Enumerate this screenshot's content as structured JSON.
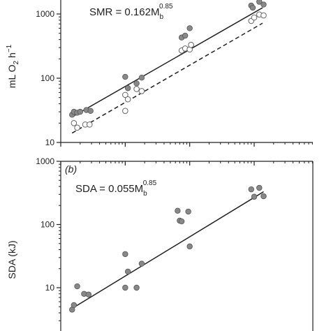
{
  "chart_data": [
    {
      "type": "scatter",
      "panel": "a",
      "equation": {
        "prefix": "SMR = 0.162M",
        "sub": "b",
        "sup": "0.85"
      },
      "ylabel_parts": {
        "a": "mL O",
        "sub": "2",
        "b": " h",
        "sup": "−1"
      },
      "yscale": "log",
      "ylim": [
        10,
        1500
      ],
      "xscale": "log",
      "xlim": [
        1,
        2000
      ],
      "yticks": [
        {
          "value": 10,
          "label": "10"
        },
        {
          "value": 100,
          "label": "100"
        },
        {
          "value": 1000,
          "label": "1000"
        }
      ],
      "series": [
        {
          "marker": "filled-gray",
          "fit": {
            "style": "solid",
            "x": [
              1.5,
              1350
            ],
            "y": [
              25,
              1250
            ]
          },
          "points": [
            {
              "x": 1.5,
              "y": 27
            },
            {
              "x": 1.6,
              "y": 30
            },
            {
              "x": 1.8,
              "y": 29
            },
            {
              "x": 2.0,
              "y": 30
            },
            {
              "x": 2.5,
              "y": 32
            },
            {
              "x": 2.9,
              "y": 31
            },
            {
              "x": 10,
              "y": 105
            },
            {
              "x": 11,
              "y": 70
            },
            {
              "x": 15,
              "y": 83
            },
            {
              "x": 18,
              "y": 102
            },
            {
              "x": 75,
              "y": 430
            },
            {
              "x": 85,
              "y": 460
            },
            {
              "x": 100,
              "y": 600
            },
            {
              "x": 105,
              "y": 330
            },
            {
              "x": 900,
              "y": 1350
            },
            {
              "x": 950,
              "y": 1250
            },
            {
              "x": 1200,
              "y": 1550
            },
            {
              "x": 1400,
              "y": 1400
            }
          ]
        },
        {
          "marker": "open",
          "fit": {
            "style": "dashed",
            "x": [
              1.5,
              1350
            ],
            "y": [
              14,
              720
            ]
          },
          "points": [
            {
              "x": 1.6,
              "y": 20
            },
            {
              "x": 1.8,
              "y": 17
            },
            {
              "x": 2.4,
              "y": 19
            },
            {
              "x": 2.8,
              "y": 19
            },
            {
              "x": 10,
              "y": 55
            },
            {
              "x": 10,
              "y": 31
            },
            {
              "x": 11,
              "y": 47
            },
            {
              "x": 15,
              "y": 68
            },
            {
              "x": 18,
              "y": 63
            },
            {
              "x": 75,
              "y": 270
            },
            {
              "x": 85,
              "y": 290
            },
            {
              "x": 100,
              "y": 280
            },
            {
              "x": 105,
              "y": 330
            },
            {
              "x": 900,
              "y": 780
            },
            {
              "x": 1000,
              "y": 880
            },
            {
              "x": 1200,
              "y": 980
            },
            {
              "x": 1400,
              "y": 950
            }
          ]
        }
      ]
    },
    {
      "type": "scatter",
      "panel": "b",
      "panel_tag": "(b)",
      "equation": {
        "prefix": "SDA = 0.055M",
        "sub": "b",
        "sup": "0.85"
      },
      "ylabel": "SDA (kJ)",
      "yscale": "log",
      "ylim": [
        2,
        1000
      ],
      "xscale": "log",
      "xlim": [
        1,
        2000
      ],
      "yticks": [
        {
          "value": 10,
          "label": "10"
        },
        {
          "value": 100,
          "label": "100"
        },
        {
          "value": 1000,
          "label": "1000"
        }
      ],
      "series": [
        {
          "marker": "filled-gray",
          "fit": {
            "style": "solid",
            "x": [
              1.5,
              1400
            ],
            "y": [
              4.7,
              330
            ]
          },
          "points": [
            {
              "x": 1.5,
              "y": 4.5
            },
            {
              "x": 1.6,
              "y": 5.3
            },
            {
              "x": 1.8,
              "y": 10.5
            },
            {
              "x": 2.3,
              "y": 8.0
            },
            {
              "x": 2.7,
              "y": 7.8
            },
            {
              "x": 10,
              "y": 34
            },
            {
              "x": 10,
              "y": 10
            },
            {
              "x": 11,
              "y": 18
            },
            {
              "x": 15,
              "y": 10
            },
            {
              "x": 18,
              "y": 24
            },
            {
              "x": 65,
              "y": 165
            },
            {
              "x": 70,
              "y": 115
            },
            {
              "x": 75,
              "y": 112
            },
            {
              "x": 95,
              "y": 160
            },
            {
              "x": 100,
              "y": 45
            },
            {
              "x": 900,
              "y": 360
            },
            {
              "x": 1000,
              "y": 275
            },
            {
              "x": 1200,
              "y": 380
            },
            {
              "x": 1400,
              "y": 280
            }
          ]
        }
      ]
    }
  ]
}
